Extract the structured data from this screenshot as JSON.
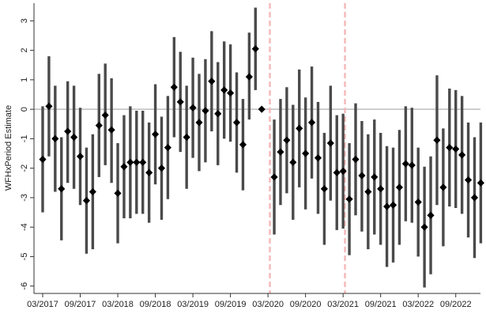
{
  "chart_data": {
    "type": "scatter",
    "title": "",
    "xlabel": "",
    "ylabel": "WFHxPeriod Estimate",
    "ylim": [
      -6.25,
      3.6
    ],
    "yticks": [
      3,
      2,
      1,
      0,
      -1,
      -2,
      -3,
      -4,
      -5,
      -6
    ],
    "xticks": [
      "03/2017",
      "09/2017",
      "03/2018",
      "09/2018",
      "03/2019",
      "09/2019",
      "03/2020",
      "09/2020",
      "03/2021",
      "09/2021",
      "03/2022",
      "09/2022"
    ],
    "xtick_month_index": [
      0,
      6,
      12,
      18,
      24,
      30,
      36,
      42,
      48,
      54,
      60,
      66
    ],
    "reference_line_y": 0,
    "vertical_markers_month_index": [
      36.3,
      48.3
    ],
    "colors": {
      "point": "#000000",
      "ci": "#4a4a4a",
      "zero_line": "#bdbdbd",
      "marker_line": "#f6b8b8",
      "axis": "#333333"
    },
    "points": [
      {
        "m": 0,
        "est": -1.7,
        "lo": -3.5,
        "hi": 0.1
      },
      {
        "m": 1,
        "est": 0.1,
        "lo": -1.6,
        "hi": 1.8
      },
      {
        "m": 2,
        "est": -1.0,
        "lo": -2.8,
        "hi": 0.8
      },
      {
        "m": 3,
        "est": -2.7,
        "lo": -4.45,
        "hi": -0.95
      },
      {
        "m": 4,
        "est": -0.75,
        "lo": -2.5,
        "hi": 0.95
      },
      {
        "m": 5,
        "est": -0.95,
        "lo": -2.7,
        "hi": 0.8
      },
      {
        "m": 6,
        "est": -1.6,
        "lo": -3.25,
        "hi": 0.05
      },
      {
        "m": 7,
        "est": -3.1,
        "lo": -4.9,
        "hi": -1.3
      },
      {
        "m": 8,
        "est": -2.8,
        "lo": -4.75,
        "hi": -0.85
      },
      {
        "m": 9,
        "est": -0.55,
        "lo": -2.3,
        "hi": 1.2
      },
      {
        "m": 10,
        "est": -0.2,
        "lo": -1.9,
        "hi": 1.55
      },
      {
        "m": 11,
        "est": -0.7,
        "lo": -2.5,
        "hi": 1.05
      },
      {
        "m": 12,
        "est": -2.85,
        "lo": -4.55,
        "hi": -1.15
      },
      {
        "m": 13,
        "est": -1.95,
        "lo": -3.7,
        "hi": -0.2
      },
      {
        "m": 14,
        "est": -1.8,
        "lo": -3.7,
        "hi": 0.1
      },
      {
        "m": 15,
        "est": -1.8,
        "lo": -3.55,
        "hi": -0.05
      },
      {
        "m": 16,
        "est": -1.8,
        "lo": -3.55,
        "hi": -0.05
      },
      {
        "m": 17,
        "est": -2.15,
        "lo": -3.85,
        "hi": -0.45
      },
      {
        "m": 18,
        "est": -0.85,
        "lo": -2.55,
        "hi": 0.85
      },
      {
        "m": 19,
        "est": -2.0,
        "lo": -3.75,
        "hi": -0.25
      },
      {
        "m": 20,
        "est": -1.3,
        "lo": -3.05,
        "hi": 0.45
      },
      {
        "m": 21,
        "est": 0.75,
        "lo": -0.95,
        "hi": 2.45
      },
      {
        "m": 22,
        "est": 0.25,
        "lo": -1.45,
        "hi": 1.95
      },
      {
        "m": 23,
        "est": -0.95,
        "lo": -2.7,
        "hi": 0.8
      },
      {
        "m": 24,
        "est": 0.05,
        "lo": -1.65,
        "hi": 1.75
      },
      {
        "m": 25,
        "est": -0.45,
        "lo": -2.1,
        "hi": 1.2
      },
      {
        "m": 26,
        "est": -0.05,
        "lo": -1.8,
        "hi": 1.7
      },
      {
        "m": 27,
        "est": 0.95,
        "lo": -0.75,
        "hi": 2.65
      },
      {
        "m": 28,
        "est": -0.15,
        "lo": -1.9,
        "hi": 1.6
      },
      {
        "m": 29,
        "est": 0.65,
        "lo": -1.0,
        "hi": 2.3
      },
      {
        "m": 30,
        "est": 0.55,
        "lo": -1.1,
        "hi": 2.2
      },
      {
        "m": 31,
        "est": -0.45,
        "lo": -2.15,
        "hi": 1.25
      },
      {
        "m": 32,
        "est": -1.2,
        "lo": -2.75,
        "hi": 0.35
      },
      {
        "m": 33,
        "est": 1.1,
        "lo": -0.35,
        "hi": 2.6
      },
      {
        "m": 34,
        "est": 2.05,
        "lo": 0.65,
        "hi": 3.45
      },
      {
        "m": 35,
        "est": 0.0,
        "lo": 0.0,
        "hi": 0.0
      },
      {
        "m": 37,
        "est": -2.3,
        "lo": -4.25,
        "hi": -0.35
      },
      {
        "m": 38,
        "est": -1.45,
        "lo": -3.25,
        "hi": 0.35
      },
      {
        "m": 39,
        "est": -1.05,
        "lo": -2.85,
        "hi": 0.75
      },
      {
        "m": 40,
        "est": -1.8,
        "lo": -3.75,
        "hi": 0.15
      },
      {
        "m": 41,
        "est": -0.65,
        "lo": -2.65,
        "hi": 1.35
      },
      {
        "m": 42,
        "est": -1.5,
        "lo": -3.4,
        "hi": 0.4
      },
      {
        "m": 43,
        "est": -0.45,
        "lo": -2.35,
        "hi": 1.45
      },
      {
        "m": 44,
        "est": -1.65,
        "lo": -3.55,
        "hi": 0.25
      },
      {
        "m": 45,
        "est": -2.7,
        "lo": -4.6,
        "hi": -0.8
      },
      {
        "m": 46,
        "est": -1.15,
        "lo": -3.1,
        "hi": 0.8
      },
      {
        "m": 47,
        "est": -2.15,
        "lo": -4.1,
        "hi": -0.2
      },
      {
        "m": 48,
        "est": -2.1,
        "lo": -4.05,
        "hi": -0.15
      },
      {
        "m": 49,
        "est": -3.05,
        "lo": -4.95,
        "hi": -1.15
      },
      {
        "m": 50,
        "est": -1.7,
        "lo": -3.6,
        "hi": 0.2
      },
      {
        "m": 51,
        "est": -2.25,
        "lo": -4.15,
        "hi": -0.4
      },
      {
        "m": 52,
        "est": -2.8,
        "lo": -4.75,
        "hi": -0.85
      },
      {
        "m": 53,
        "est": -2.3,
        "lo": -4.25,
        "hi": -0.35
      },
      {
        "m": 54,
        "est": -2.7,
        "lo": -4.6,
        "hi": -0.8
      },
      {
        "m": 55,
        "est": -3.3,
        "lo": -5.35,
        "hi": -1.25
      },
      {
        "m": 56,
        "est": -3.25,
        "lo": -5.2,
        "hi": -1.3
      },
      {
        "m": 57,
        "est": -2.65,
        "lo": -4.6,
        "hi": -0.7
      },
      {
        "m": 58,
        "est": -1.85,
        "lo": -3.8,
        "hi": 0.1
      },
      {
        "m": 59,
        "est": -1.9,
        "lo": -3.85,
        "hi": 0.05
      },
      {
        "m": 60,
        "est": -3.15,
        "lo": -5.0,
        "hi": -1.3
      },
      {
        "m": 61,
        "est": -4.0,
        "lo": -6.05,
        "hi": -1.95
      },
      {
        "m": 62,
        "est": -3.6,
        "lo": -5.6,
        "hi": -1.6
      },
      {
        "m": 63,
        "est": -1.05,
        "lo": -3.25,
        "hi": 1.15
      },
      {
        "m": 64,
        "est": -2.65,
        "lo": -4.65,
        "hi": -0.65
      },
      {
        "m": 65,
        "est": -1.3,
        "lo": -3.3,
        "hi": 0.7
      },
      {
        "m": 66,
        "est": -1.35,
        "lo": -3.35,
        "hi": 0.65
      },
      {
        "m": 67,
        "est": -1.55,
        "lo": -3.55,
        "hi": 0.45
      },
      {
        "m": 68,
        "est": -2.4,
        "lo": -4.35,
        "hi": -0.45
      },
      {
        "m": 69,
        "est": -3.0,
        "lo": -5.05,
        "hi": -0.95
      },
      {
        "m": 70,
        "est": -2.5,
        "lo": -4.55,
        "hi": -0.45
      }
    ]
  }
}
